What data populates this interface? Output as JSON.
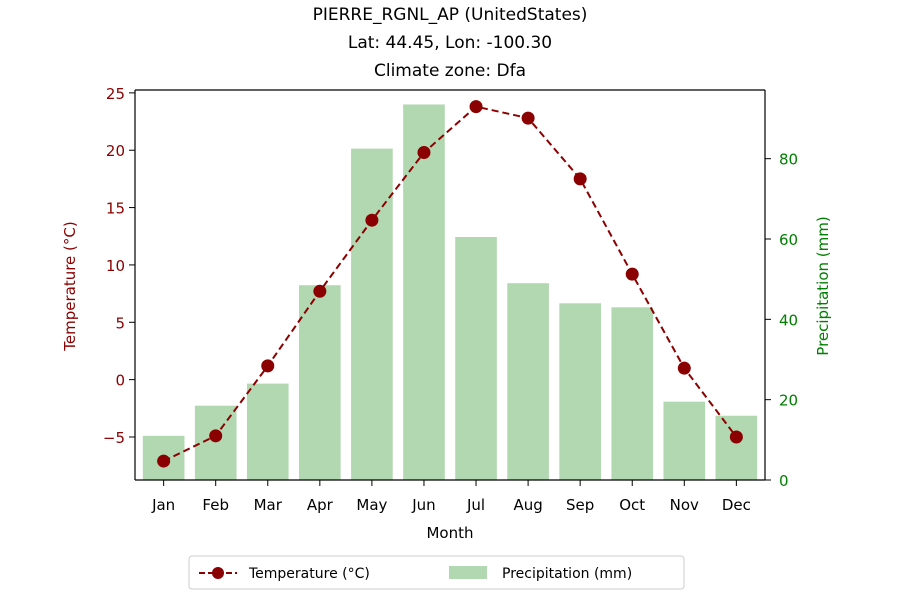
{
  "title_lines": [
    "PIERRE_RGNL_AP (UnitedStates)",
    "Lat: 44.45, Lon: -100.30",
    "Climate zone: Dfa"
  ],
  "colors": {
    "temperature": "#8b0000",
    "precipitation_bar": "#b2d8b2",
    "precipitation_axis": "#008000"
  },
  "chart_data": {
    "type": "bar+line",
    "categories": [
      "Jan",
      "Feb",
      "Mar",
      "Apr",
      "May",
      "Jun",
      "Jul",
      "Aug",
      "Sep",
      "Oct",
      "Nov",
      "Dec"
    ],
    "xlabel": "Month",
    "series": [
      {
        "name": "Temperature (°C)",
        "type": "line",
        "axis": "left",
        "values": [
          -7.1,
          -4.9,
          1.2,
          7.7,
          13.9,
          19.8,
          23.8,
          22.8,
          17.5,
          9.2,
          1.0,
          -5.0
        ]
      },
      {
        "name": "Precipitation (mm)",
        "type": "bar",
        "axis": "right",
        "values": [
          11.0,
          18.5,
          24.0,
          48.5,
          82.5,
          93.5,
          60.5,
          49.0,
          44.0,
          43.0,
          19.5,
          16.0
        ]
      }
    ],
    "y_left": {
      "label": "Temperature (°C)",
      "ylim": [
        -8.75,
        25.25
      ],
      "ticks": [
        -5,
        0,
        5,
        10,
        15,
        20,
        25
      ],
      "tick_labels": [
        "−5",
        "0",
        "5",
        "10",
        "15",
        "20",
        "25"
      ]
    },
    "y_right": {
      "label": "Precipitation (mm)",
      "ylim": [
        0,
        97.1
      ],
      "ticks": [
        0,
        20,
        40,
        60,
        80
      ],
      "tick_labels": [
        "0",
        "20",
        "40",
        "60",
        "80"
      ]
    },
    "grid": false,
    "legend": {
      "placement": "bottom-center",
      "entries": [
        "Temperature (°C)",
        "Precipitation (mm)"
      ]
    }
  }
}
